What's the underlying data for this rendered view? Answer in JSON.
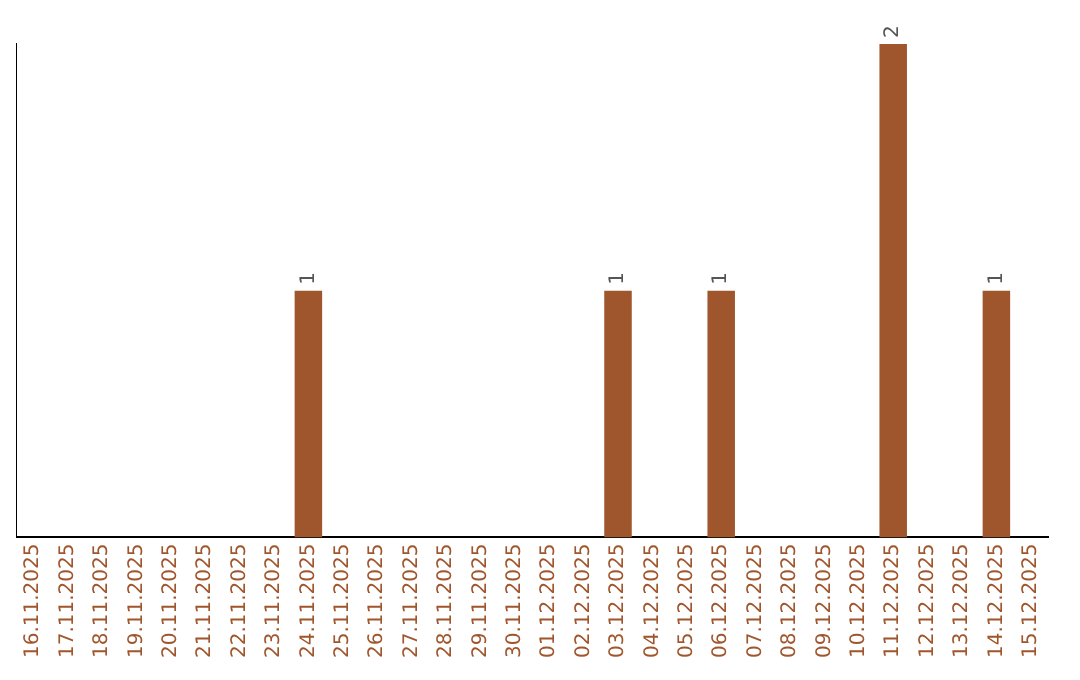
{
  "chart_data": {
    "type": "bar",
    "categories": [
      "16.11.2025",
      "17.11.2025",
      "18.11.2025",
      "19.11.2025",
      "20.11.2025",
      "21.11.2025",
      "22.11.2025",
      "23.11.2025",
      "24.11.2025",
      "25.11.2025",
      "26.11.2025",
      "27.11.2025",
      "28.11.2025",
      "29.11.2025",
      "30.11.2025",
      "01.12.2025",
      "02.12.2025",
      "03.12.2025",
      "04.12.2025",
      "05.12.2025",
      "06.12.2025",
      "07.12.2025",
      "08.12.2025",
      "09.12.2025",
      "10.12.2025",
      "11.12.2025",
      "12.12.2025",
      "13.12.2025",
      "14.12.2025",
      "15.12.2025"
    ],
    "values": [
      0,
      0,
      0,
      0,
      0,
      0,
      0,
      0,
      1,
      0,
      0,
      0,
      0,
      0,
      0,
      0,
      0,
      1,
      0,
      0,
      1,
      0,
      0,
      0,
      0,
      2,
      0,
      0,
      1,
      0
    ],
    "value_labels": [
      null,
      null,
      null,
      null,
      null,
      null,
      null,
      null,
      "1",
      null,
      null,
      null,
      null,
      null,
      null,
      null,
      null,
      "1",
      null,
      null,
      "1",
      null,
      null,
      null,
      null,
      "2",
      null,
      null,
      "1",
      null
    ],
    "color": "#a0562c",
    "grid": false,
    "legend": false,
    "tick_labels": "x"
  }
}
